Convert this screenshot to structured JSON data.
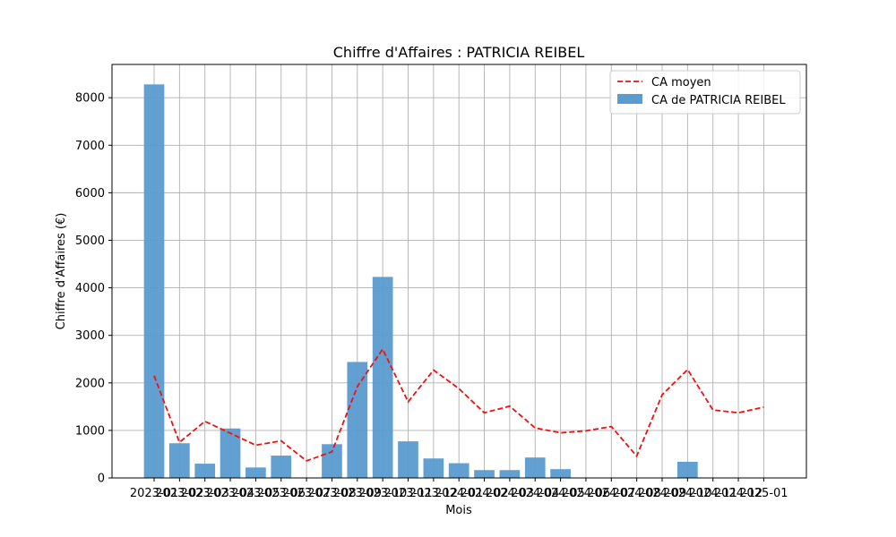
{
  "colors": {
    "bar": "#5b9bd0",
    "avg_line": "#ee1111",
    "grid": "#b0b0b0",
    "frame": "#000000"
  },
  "chart_data": {
    "type": "bar",
    "title": "Chiffre d'Affaires : PATRICIA REIBEL",
    "xlabel": "Mois",
    "ylabel": "Chiffre d'Affaires (€)",
    "ylim": [
      0,
      8700
    ],
    "yticks": [
      0,
      1000,
      2000,
      3000,
      4000,
      5000,
      6000,
      7000,
      8000
    ],
    "grid": true,
    "legend_position": "top-right",
    "categories": [
      "2023-01",
      "2023-02",
      "2023-03",
      "2023-04",
      "2023-05",
      "2023-06",
      "2023-07",
      "2023-08",
      "2023-09",
      "2023-10",
      "2023-11",
      "2023-12",
      "2024-01",
      "2024-02",
      "2024-03",
      "2024-04",
      "2024-05",
      "2024-06",
      "2024-07",
      "2024-08",
      "2024-09",
      "2024-10",
      "2024-11",
      "2024-12",
      "2025-01"
    ],
    "series": [
      {
        "name": "CA de PATRICIA REIBEL",
        "type": "bar",
        "values": [
          8280,
          730,
          300,
          1040,
          220,
          470,
          10,
          710,
          2440,
          4230,
          770,
          410,
          310,
          165,
          165,
          430,
          185,
          0,
          0,
          0,
          0,
          340,
          0,
          0,
          0
        ]
      },
      {
        "name": "CA moyen",
        "type": "line",
        "style": "dashed",
        "values": [
          2150,
          750,
          1190,
          940,
          690,
          780,
          360,
          550,
          1920,
          2710,
          1600,
          2270,
          1880,
          1370,
          1510,
          1050,
          950,
          990,
          1080,
          460,
          1750,
          2280,
          1430,
          1370,
          1490
        ]
      }
    ]
  }
}
